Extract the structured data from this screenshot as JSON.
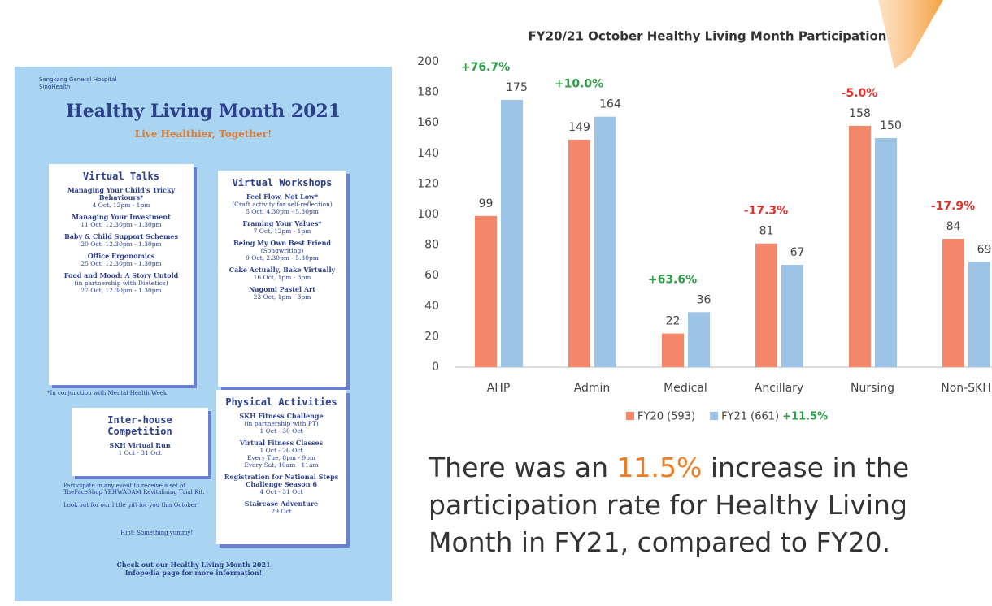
{
  "chart_data": {
    "type": "bar",
    "title": "FY20/21 October Healthy Living Month Participation",
    "categories": [
      "AHP",
      "Admin",
      "Medical",
      "Ancillary",
      "Nursing",
      "Non-SKH"
    ],
    "series": [
      {
        "name": "FY20 (593)",
        "color": "#f4866a",
        "values": [
          99,
          149,
          22,
          81,
          158,
          84
        ]
      },
      {
        "name": "FY21 (661)",
        "color": "#9dc3e6",
        "values": [
          175,
          164,
          36,
          67,
          150,
          69
        ]
      }
    ],
    "changes": [
      "+76.7%",
      "+10.0%",
      "+63.6%",
      "-17.3%",
      "-5.0%",
      "-17.9%"
    ],
    "change_colors": [
      "#2a9d45",
      "#2a9d45",
      "#2a9d45",
      "#e0322b",
      "#e0322b",
      "#e0322b"
    ],
    "legend_note": "+11.5%",
    "legend_note_color": "#2a9d45",
    "ylim": [
      0,
      200
    ],
    "yticks": [
      0,
      20,
      40,
      60,
      80,
      100,
      120,
      140,
      160,
      180,
      200
    ],
    "grid": false
  },
  "caption": {
    "before": "There was an ",
    "highlight": "11.5%",
    "after": " increase in the participation rate for Healthy Living Month in FY21, compared to FY20."
  },
  "poster": {
    "org": [
      "Sengkang General Hospital",
      "SingHealth"
    ],
    "title": "Healthy Living Month 2021",
    "subtitle": "Live Healthier, Together!",
    "talks": {
      "heading": "Virtual Talks",
      "items": [
        [
          "Managing Your Child's Tricky Behaviours*",
          "4 Oct, 12pm - 1pm"
        ],
        [
          "Managing Your Investment",
          "11 Oct, 12.30pm - 1.30pm"
        ],
        [
          "Baby & Child Support Schemes",
          "20 Oct, 12.30pm - 1.30pm"
        ],
        [
          "Office Ergonomics",
          "25 Oct, 12.30pm - 1.30pm"
        ],
        [
          "Food and Mood: A Story Untold",
          "(in partnership with Dietetics)",
          "27 Oct, 12.30pm - 1.30pm"
        ]
      ]
    },
    "workshops": {
      "heading": "Virtual Workshops",
      "items": [
        [
          "Feel Flow, Not Low*",
          "(Craft activity for self-reflection)",
          "5 Oct, 4.30pm - 5.30pm"
        ],
        [
          "Framing Your Values*",
          "7 Oct, 12pm - 1pm"
        ],
        [
          "Being My Own Best Friend",
          "(Songwriting)",
          "9 Oct, 2.30pm - 5.30pm"
        ],
        [
          "Cake Actually, Bake Virtually",
          "16 Oct, 1pm - 3pm"
        ],
        [
          "Nagomi Pastel Art",
          "23 Oct, 1pm - 3pm"
        ]
      ]
    },
    "footnote": "*In conjunction with Mental Health Week",
    "interhouse": {
      "heading": "Inter-house Competition",
      "items": [
        [
          "SKH Virtual Run",
          "1 Oct - 31 Oct"
        ]
      ]
    },
    "physical": {
      "heading": "Physical Activities",
      "items": [
        [
          "SKH Fitness Challenge",
          "(in partnership with PT)",
          "1 Oct - 30 Oct"
        ],
        [
          "Virtual Fitness Classes",
          "1 Oct - 26 Oct",
          "Every Tue, 8pm - 9pm",
          "Every Sat, 10am - 11am"
        ],
        [
          "Registration for National Steps Challenge Season 6",
          "4 Oct - 31 Oct"
        ],
        [
          "Staircase Adventure",
          "29 Oct"
        ]
      ]
    },
    "notes": [
      "Participate in any event to receive a set of TheFaceShop YEHWADAM Revitalising Trial Kit.",
      "Look out for our little gift for you this October!"
    ],
    "hint": "Hint: Something yummy!",
    "footer": "Check out our Healthy Living Month 2021 Infopedia page for more information!"
  }
}
